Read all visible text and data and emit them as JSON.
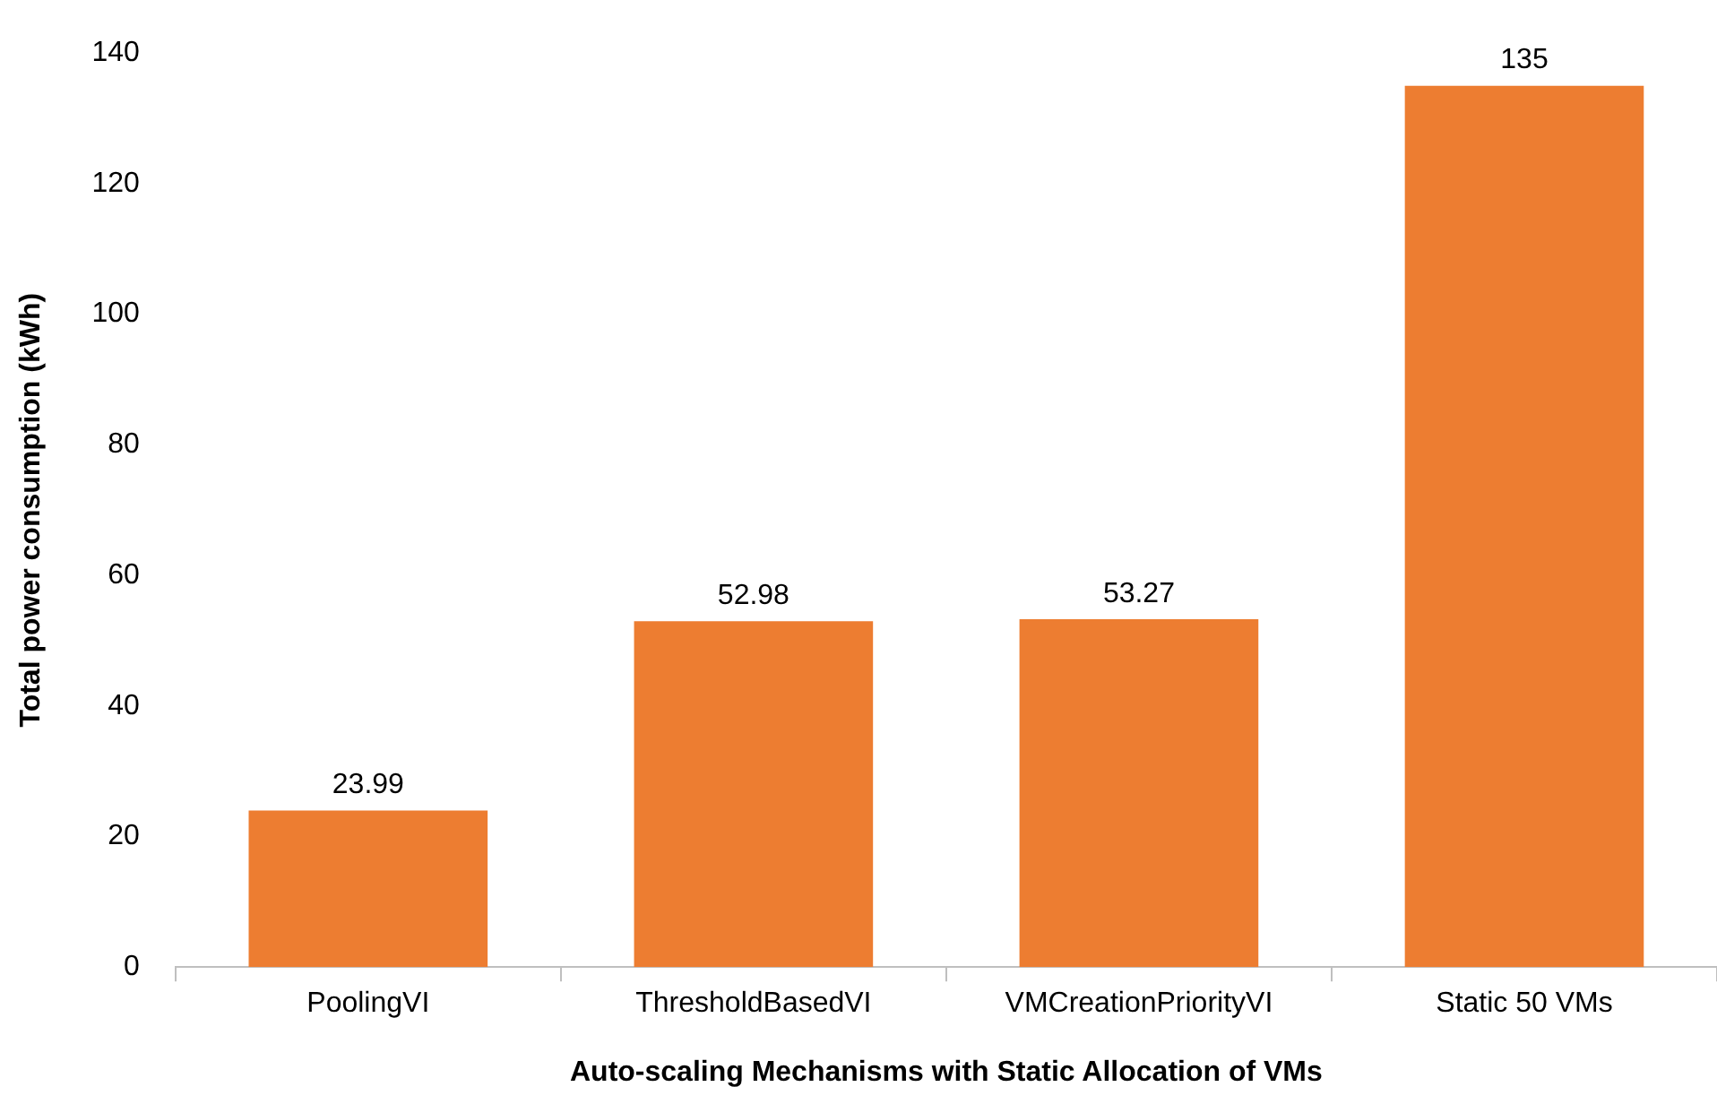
{
  "chart_data": {
    "type": "bar",
    "xlabel": "Auto-scaling Mechanisms with Static Allocation of VMs",
    "ylabel": "Total power consumption (kWh)",
    "categories": [
      "PoolingVI",
      "ThresholdBasedVI",
      "VMCreationPriorityVI",
      "Static 50 VMs"
    ],
    "values": [
      23.99,
      52.98,
      53.27,
      135
    ],
    "color": "#ed7d31",
    "ylim": [
      0,
      140
    ],
    "yticks": [
      0,
      20,
      40,
      60,
      80,
      100,
      120,
      140
    ],
    "grid": false,
    "legend": false,
    "data_labels": true
  }
}
